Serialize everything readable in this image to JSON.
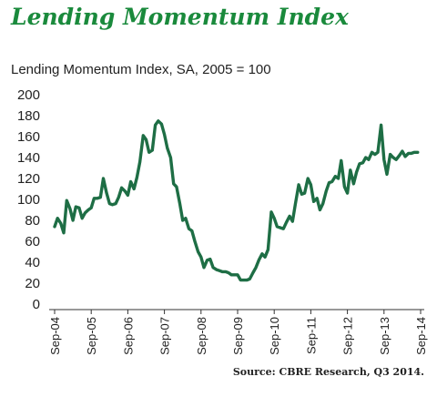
{
  "header": {
    "title": "Lending Momentum Index",
    "subtitle": "Lending Momentum Index, SA, 2005 = 100"
  },
  "footer": {
    "source": "Source: CBRE Research, Q3 2014."
  },
  "colors": {
    "title": "#1a8a3c",
    "line": "#1e6e45"
  },
  "chart_data": {
    "type": "line",
    "title": "Lending Momentum Index, SA, 2005 = 100",
    "xlabel": "",
    "ylabel": "",
    "ylim": [
      0,
      200
    ],
    "yticks": [
      0,
      20,
      40,
      60,
      80,
      100,
      120,
      140,
      160,
      180,
      200
    ],
    "xticks": [
      "Sep-04",
      "Sep-05",
      "Sep-06",
      "Sep-07",
      "Sep-08",
      "Sep-09",
      "Sep-10",
      "Sep-11",
      "Sep-12",
      "Sep-13",
      "Sep-14"
    ],
    "grid": false,
    "series": [
      {
        "x": [
          2004.75,
          2004.83,
          2004.92,
          2005.0,
          2005.08,
          2005.17,
          2005.25,
          2005.33,
          2005.42,
          2005.5,
          2005.58,
          2005.67,
          2005.75,
          2005.83,
          2005.92,
          2006.0,
          2006.08,
          2006.17,
          2006.25,
          2006.33,
          2006.42,
          2006.5,
          2006.58,
          2006.67,
          2006.75,
          2006.83,
          2006.92,
          2007.0,
          2007.08,
          2007.17,
          2007.25,
          2007.33,
          2007.42,
          2007.5,
          2007.58,
          2007.67,
          2007.75,
          2007.83,
          2007.92,
          2008.0,
          2008.08,
          2008.17,
          2008.25,
          2008.33,
          2008.42,
          2008.5,
          2008.58,
          2008.67,
          2008.75,
          2008.83,
          2008.92,
          2009.0,
          2009.08,
          2009.17,
          2009.25,
          2009.33,
          2009.42,
          2009.5,
          2009.58,
          2009.67,
          2009.75,
          2009.83,
          2009.92,
          2010.0,
          2010.08,
          2010.17,
          2010.25,
          2010.33,
          2010.42,
          2010.5,
          2010.58,
          2010.67,
          2010.75,
          2010.83,
          2010.92,
          2011.0,
          2011.08,
          2011.17,
          2011.25,
          2011.33,
          2011.42,
          2011.5,
          2011.58,
          2011.67,
          2011.75,
          2011.83,
          2011.92,
          2012.0,
          2012.08,
          2012.17,
          2012.25,
          2012.33,
          2012.42,
          2012.5,
          2012.58,
          2012.67,
          2012.75,
          2012.83,
          2012.92,
          2013.0,
          2013.08,
          2013.17,
          2013.25,
          2013.33,
          2013.42,
          2013.5,
          2013.58,
          2013.67,
          2013.75,
          2013.83,
          2013.92,
          2014.0,
          2014.08,
          2014.17,
          2014.25,
          2014.33,
          2014.42,
          2014.5,
          2014.58,
          2014.67
        ],
        "y": [
          74,
          82,
          77,
          68,
          99,
          91,
          80,
          93,
          92,
          82,
          87,
          90,
          92,
          101,
          101,
          102,
          120,
          106,
          96,
          95,
          96,
          102,
          111,
          108,
          104,
          117,
          110,
          121,
          136,
          161,
          157,
          145,
          147,
          171,
          175,
          172,
          162,
          149,
          140,
          115,
          112,
          96,
          80,
          82,
          72,
          70,
          60,
          50,
          45,
          35,
          42,
          43,
          35,
          33,
          32,
          31,
          31,
          30,
          28,
          28,
          28,
          23,
          23,
          23,
          24,
          30,
          35,
          42,
          48,
          45,
          52,
          88,
          82,
          74,
          73,
          72,
          78,
          84,
          79,
          96,
          114,
          105,
          106,
          120,
          114,
          98,
          101,
          90,
          96,
          108,
          116,
          117,
          122,
          120,
          137,
          112,
          106,
          128,
          115,
          126,
          134,
          135,
          140,
          138,
          145,
          143,
          145,
          171,
          138,
          124,
          143,
          140,
          138,
          142,
          146,
          141,
          144,
          144,
          145,
          145
        ]
      }
    ]
  }
}
